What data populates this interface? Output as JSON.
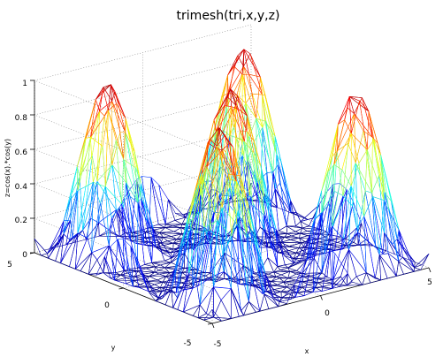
{
  "chart_data": {
    "type": "trimesh",
    "title": "trimesh(tri,x,y,z)",
    "function": "z = cos(x)*cos(y) clipped at 0",
    "xlabel": "x",
    "ylabel": "y",
    "zlabel": "z=cos(x).*cos(y)",
    "xlim": [
      -5,
      5
    ],
    "ylim": [
      -5,
      5
    ],
    "zlim": [
      0,
      1
    ],
    "xticks": [
      "-5",
      "0",
      "5"
    ],
    "yticks": [
      "-5",
      "0",
      "5"
    ],
    "zticks": [
      "0",
      "0.2",
      "0.4",
      "0.6",
      "0.8",
      "1"
    ],
    "peaks": [
      {
        "x": -3.14,
        "y": -3.14,
        "z": 1
      },
      {
        "x": -3.14,
        "y": 3.14,
        "z": 1
      },
      {
        "x": 0,
        "y": 0,
        "z": 1
      },
      {
        "x": 3.14,
        "y": -3.14,
        "z": 1
      },
      {
        "x": 3.14,
        "y": 3.14,
        "z": 1
      }
    ],
    "colormap": "jet",
    "grid": true,
    "colors": {
      "low": "#00008f",
      "mid": "#7fff7f",
      "high": "#800000"
    }
  }
}
